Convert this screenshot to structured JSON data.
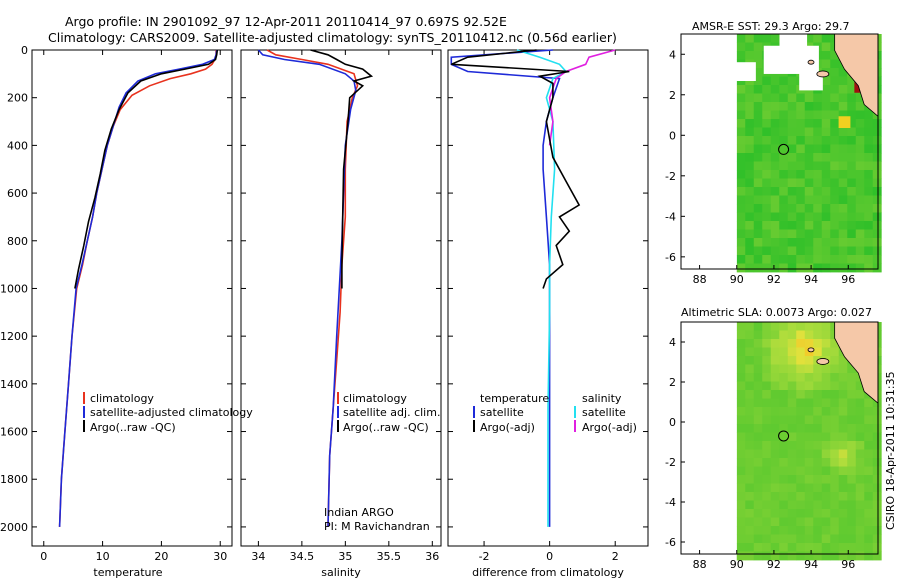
{
  "header": {
    "line1": "Argo profile: IN 2901092_97 12-Apr-2011 20110414_97 0.697S 92.52E",
    "line2": "Climatology: CARS2009. Satellite-adjusted climatology: synTS_20110412.nc (0.56d earlier)"
  },
  "side_text": "CSIRO 18-Apr-2011 10:31:35",
  "colors": {
    "climatology": "#e8321e",
    "satellite": "#1e2ad8",
    "argo": "#000000",
    "salinity_sat": "#22e0f0",
    "salinity_argo": "#e020e0",
    "land": "#f5c8a8",
    "no_data": "#ffffff"
  },
  "chart_data": [
    {
      "type": "line",
      "id": "temperature",
      "xlabel": "temperature",
      "ylabel": "",
      "xlim": [
        -2,
        32
      ],
      "ylim": [
        2080,
        0
      ],
      "y_inverted": true,
      "x_ticks": [
        0,
        10,
        20,
        30
      ],
      "y_ticks": [
        0,
        200,
        400,
        600,
        800,
        1000,
        1200,
        1400,
        1600,
        1800,
        2000
      ],
      "legend": [
        "climatology",
        "satellite-adjusted climatology",
        "Argo(..raw -QC)"
      ],
      "series": [
        {
          "name": "climatology",
          "color_key": "climatology",
          "x": [
            29.3,
            29.3,
            29.1,
            28.6,
            27.5,
            25.0,
            21.5,
            18.0,
            15.0,
            13.0,
            11.8,
            10.8,
            9.9,
            9.0,
            8.3,
            7.4,
            6.6,
            5.6,
            4.8,
            4.2,
            3.6,
            3.0,
            2.7
          ],
          "y": [
            0,
            20,
            40,
            60,
            80,
            100,
            120,
            150,
            190,
            250,
            320,
            400,
            500,
            600,
            700,
            800,
            900,
            1000,
            1200,
            1400,
            1600,
            1800,
            2000
          ]
        },
        {
          "name": "satellite-adjusted climatology",
          "color_key": "satellite",
          "x": [
            29.4,
            29.3,
            29.0,
            27.0,
            23.0,
            19.0,
            16.0,
            14.0,
            12.8,
            11.8,
            10.8,
            9.9,
            9.0,
            8.3,
            7.4,
            6.5,
            5.5,
            4.8,
            4.2,
            3.6,
            3.0,
            2.7
          ],
          "y": [
            0,
            20,
            40,
            60,
            80,
            100,
            130,
            180,
            240,
            320,
            400,
            500,
            600,
            700,
            800,
            900,
            1000,
            1200,
            1400,
            1600,
            1800,
            2000
          ]
        },
        {
          "name": "Argo(..raw -QC)",
          "color_key": "argo",
          "x": [
            29.5,
            29.4,
            29.2,
            28.0,
            24.0,
            20.0,
            16.5,
            14.3,
            12.8,
            11.5,
            10.4,
            9.6,
            8.7,
            7.6,
            6.8,
            5.9,
            5.3
          ],
          "y": [
            0,
            20,
            40,
            60,
            80,
            100,
            130,
            180,
            250,
            330,
            420,
            520,
            620,
            720,
            820,
            920,
            1000
          ]
        }
      ]
    },
    {
      "type": "line",
      "id": "salinity",
      "xlabel": "salinity",
      "ylabel": "",
      "xlim": [
        33.8,
        36.1
      ],
      "ylim": [
        2080,
        0
      ],
      "y_inverted": true,
      "x_ticks": [
        34,
        34.5,
        35,
        35.5,
        36
      ],
      "legend": [
        "climatology",
        "satellite adj. clim.",
        "Argo(..raw -QC)"
      ],
      "annotations": [
        "Indian ARGO",
        "PI: M Ravichandran"
      ],
      "series": [
        {
          "name": "climatology",
          "color_key": "climatology",
          "x": [
            34.1,
            34.2,
            34.5,
            34.8,
            35.1,
            35.14,
            35.08,
            35.02,
            35.0,
            35.0,
            34.96,
            34.94,
            34.9,
            34.86,
            34.82,
            34.8
          ],
          "y": [
            0,
            20,
            40,
            60,
            100,
            150,
            200,
            300,
            500,
            700,
            900,
            1100,
            1300,
            1500,
            1700,
            2000
          ]
        },
        {
          "name": "satellite adj. clim.",
          "color_key": "satellite",
          "x": [
            34.0,
            34.05,
            34.3,
            34.7,
            35.0,
            35.1,
            35.12,
            35.06,
            35.0,
            34.98,
            34.96,
            34.93,
            34.9,
            34.86,
            34.82,
            34.8
          ],
          "y": [
            0,
            20,
            40,
            60,
            100,
            130,
            170,
            250,
            400,
            600,
            800,
            1000,
            1200,
            1500,
            1700,
            2000
          ]
        },
        {
          "name": "Argo(..raw -QC)",
          "color_key": "argo",
          "x": [
            34.6,
            34.8,
            34.9,
            35.0,
            35.2,
            35.3,
            35.1,
            35.2,
            35.05,
            35.03,
            34.98,
            34.97,
            34.96,
            34.96
          ],
          "y": [
            0,
            20,
            40,
            60,
            80,
            110,
            130,
            150,
            200,
            300,
            500,
            700,
            900,
            1000
          ]
        }
      ]
    },
    {
      "type": "line",
      "id": "difference",
      "xlabel": "difference from climatology",
      "ylabel": "",
      "xlim": [
        -3.1,
        3.0
      ],
      "ylim": [
        2080,
        0
      ],
      "y_inverted": true,
      "x_ticks": [
        -2,
        0,
        2
      ],
      "legend_left_title": "temperature",
      "legend_left": [
        "satellite",
        "Argo(-adj)"
      ],
      "legend_right_title": "salinity",
      "legend_right": [
        "satellite",
        "Argo(-adj)"
      ],
      "series": [
        {
          "name": "temperature satellite",
          "color_key": "satellite",
          "x": [
            0.1,
            -3.0,
            -3.0,
            -2.5,
            0.3,
            0.1,
            -0.1,
            -0.2,
            -0.2,
            -0.1,
            0.0,
            0.0,
            0.0,
            0.0,
            0.0
          ],
          "y": [
            0,
            30,
            60,
            90,
            120,
            200,
            300,
            400,
            500,
            700,
            900,
            1100,
            1400,
            1700,
            2000
          ]
        },
        {
          "name": "salinity satellite",
          "color_key": "salinity_sat",
          "x": [
            -1.0,
            -0.3,
            0.3,
            0.5,
            0.1,
            -0.1,
            0.1,
            0.15,
            0.05,
            0.0,
            0.0,
            -0.05,
            -0.05
          ],
          "y": [
            0,
            30,
            60,
            90,
            120,
            200,
            300,
            500,
            700,
            900,
            1100,
            1500,
            2000
          ]
        },
        {
          "name": "salinity Argo(-adj)",
          "color_key": "salinity_argo",
          "x": [
            2.0,
            1.2,
            1.1,
            0.5,
            0.2,
            0.0,
            0.1,
            0.0
          ],
          "y": [
            0,
            30,
            60,
            90,
            120,
            200,
            300,
            400
          ]
        },
        {
          "name": "temperature Argo(-adj)",
          "color_key": "argo",
          "x": [
            -0.4,
            -2.5,
            -3.0,
            0.6,
            -0.3,
            0.1,
            0.1,
            -0.1,
            0.1,
            0.5,
            0.9,
            0.3,
            0.6,
            0.2,
            0.4,
            -0.1,
            -0.2
          ],
          "y": [
            0,
            30,
            60,
            90,
            110,
            140,
            200,
            300,
            450,
            550,
            650,
            700,
            760,
            820,
            900,
            960,
            1000
          ]
        }
      ]
    },
    {
      "type": "heatmap",
      "id": "sst_map",
      "title": "AMSR-E SST: 29.3 Argo: 29.7",
      "xlim": [
        87,
        97.6
      ],
      "ylim": [
        -6.6,
        5.0
      ],
      "x_ticks": [
        88,
        90,
        92,
        94,
        96
      ],
      "y_ticks": [
        -6,
        -4,
        -2,
        0,
        2,
        4
      ],
      "argo_position": [
        92.52,
        -0.697
      ]
    },
    {
      "type": "heatmap",
      "id": "sla_map",
      "title": "Altimetric SLA: 0.0073 Argo: 0.027",
      "xlim": [
        87,
        97.6
      ],
      "ylim": [
        -6.6,
        5.0
      ],
      "x_ticks": [
        88,
        90,
        92,
        94,
        96
      ],
      "y_ticks": [
        -6,
        -4,
        -2,
        0,
        2,
        4
      ],
      "argo_position": [
        92.52,
        -0.697
      ]
    }
  ]
}
